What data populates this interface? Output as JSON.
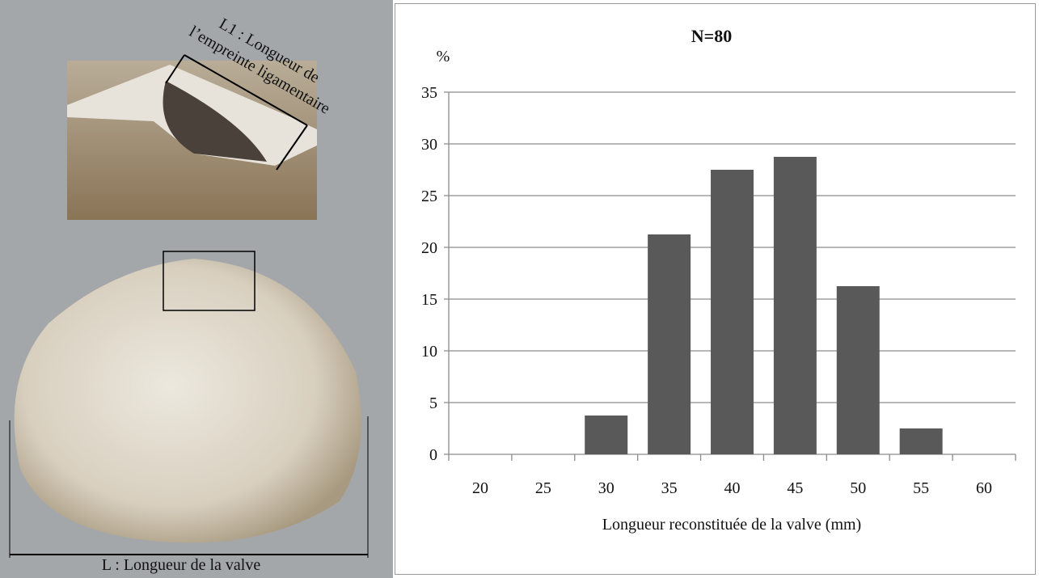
{
  "chart_data": {
    "type": "bar",
    "title": "N=80",
    "y_label": "%",
    "x_label": "Longueur reconstituée de la valve (mm)",
    "categories": [
      "20",
      "25",
      "30",
      "35",
      "40",
      "45",
      "50",
      "55",
      "60"
    ],
    "values": [
      0,
      0,
      3.75,
      21.25,
      27.5,
      28.75,
      16.25,
      2.5,
      0
    ],
    "color": "#595959",
    "ylim": [
      0,
      35
    ],
    "yticks": [
      0,
      5,
      10,
      15,
      20,
      25,
      30,
      35
    ],
    "grid": true,
    "annotations": [
      "L1 : Longueur de",
      "l’empreinte ligamentaire",
      "L : Longueur de la valve"
    ]
  }
}
